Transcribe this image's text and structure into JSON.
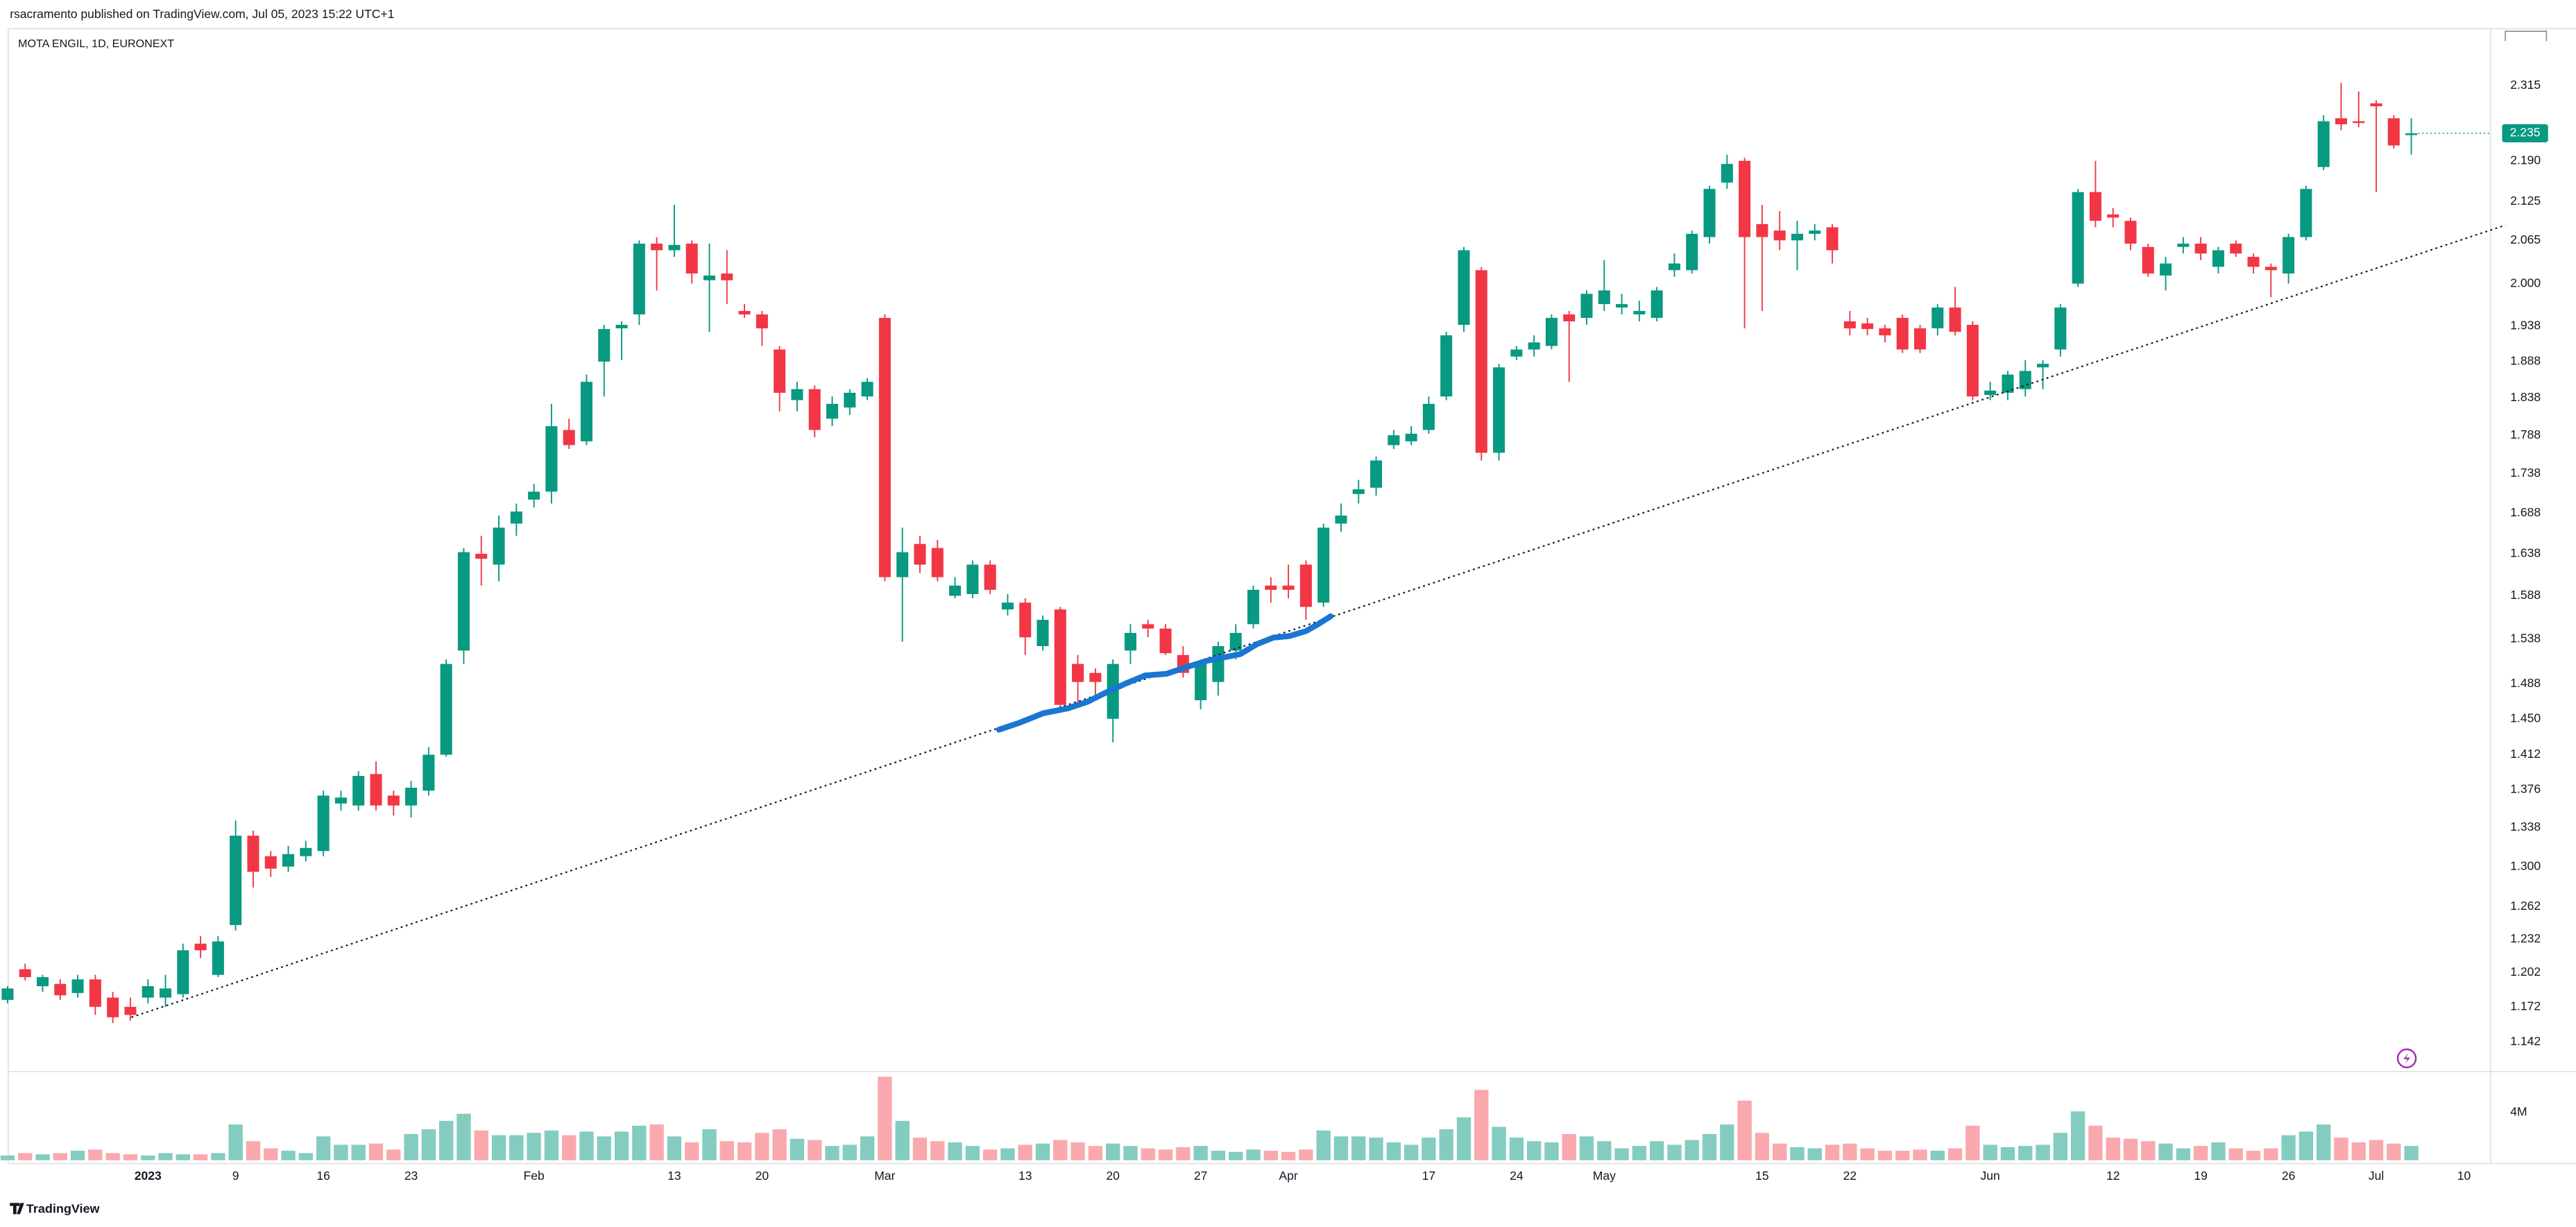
{
  "header": "rsacramento published on TradingView.com, Jul 05, 2023 15:22 UTC+1",
  "footer": "TradingView",
  "chart_data": {
    "type": "candlestick",
    "title": "MOTA ENGIL, 1D, EURONEXT",
    "log_scale": true,
    "grid": false,
    "up_color": "#089981",
    "down_color": "#f23645",
    "volume_up_color": "#84ccc0",
    "volume_down_color": "#f9a9ae",
    "categories": [
      null,
      null,
      null,
      null,
      null,
      null,
      null,
      null,
      "2023",
      null,
      null,
      null,
      null,
      "9",
      null,
      null,
      null,
      null,
      "16",
      null,
      null,
      null,
      null,
      "23",
      null,
      null,
      null,
      null,
      null,
      null,
      "Feb",
      null,
      null,
      null,
      null,
      null,
      null,
      null,
      "13",
      null,
      null,
      null,
      null,
      "20",
      null,
      null,
      null,
      null,
      null,
      null,
      "Mar",
      null,
      null,
      null,
      null,
      null,
      null,
      null,
      "13",
      null,
      null,
      null,
      null,
      "20",
      null,
      null,
      null,
      null,
      "27",
      null,
      null,
      null,
      null,
      "Apr",
      null,
      null,
      null,
      null,
      null,
      null,
      null,
      "17",
      null,
      null,
      null,
      null,
      "24",
      null,
      null,
      null,
      null,
      "May",
      null,
      null,
      null,
      null,
      null,
      null,
      null,
      null,
      "15",
      null,
      null,
      null,
      null,
      "22",
      null,
      null,
      null,
      null,
      null,
      null,
      null,
      "Jun",
      null,
      null,
      null,
      null,
      null,
      null,
      "12",
      null,
      null,
      null,
      null,
      "19",
      null,
      null,
      null,
      null,
      "26",
      null,
      null,
      null,
      null,
      "Jul",
      null,
      null,
      null,
      null,
      "10"
    ],
    "open": [
      1.178,
      1.205,
      1.19,
      1.192,
      1.184,
      1.196,
      1.18,
      1.172,
      1.18,
      1.18,
      1.183,
      1.228,
      1.2,
      1.245,
      1.33,
      1.31,
      1.3,
      1.31,
      1.315,
      1.362,
      1.36,
      1.392,
      1.37,
      1.36,
      1.375,
      1.412,
      1.525,
      1.638,
      1.625,
      1.675,
      1.705,
      1.715,
      1.795,
      1.78,
      1.888,
      1.935,
      1.955,
      2.06,
      2.05,
      2.06,
      2.005,
      2.015,
      1.96,
      1.955,
      1.905,
      1.835,
      1.85,
      1.81,
      1.825,
      1.84,
      1.95,
      1.61,
      1.65,
      1.645,
      1.588,
      1.59,
      1.625,
      1.572,
      1.58,
      1.53,
      1.572,
      1.51,
      1.5,
      1.45,
      1.525,
      1.555,
      1.55,
      1.52,
      1.47,
      1.49,
      1.525,
      1.555,
      1.6,
      1.6,
      1.625,
      1.58,
      1.675,
      1.712,
      1.72,
      1.775,
      1.78,
      1.795,
      1.84,
      1.94,
      2.02,
      1.765,
      1.895,
      1.905,
      1.91,
      1.955,
      1.95,
      1.97,
      1.965,
      1.955,
      1.95,
      2.02,
      2.02,
      2.07,
      2.155,
      2.19,
      2.09,
      2.08,
      2.065,
      2.075,
      2.085,
      1.945,
      1.942,
      1.935,
      1.95,
      1.935,
      1.935,
      1.965,
      1.94,
      1.842,
      1.845,
      1.85,
      1.88,
      1.905,
      2.0,
      2.14,
      2.105,
      2.095,
      2.055,
      2.012,
      2.055,
      2.06,
      2.025,
      2.06,
      2.04,
      2.025,
      2.015,
      2.07,
      2.18,
      2.26,
      2.255,
      2.285,
      2.26,
      2.232,
      null,
      null,
      null
    ],
    "high": [
      1.19,
      1.21,
      1.2,
      1.196,
      1.2,
      1.2,
      1.185,
      1.18,
      1.196,
      1.2,
      1.228,
      1.235,
      1.235,
      1.345,
      1.335,
      1.315,
      1.32,
      1.325,
      1.375,
      1.375,
      1.395,
      1.405,
      1.375,
      1.385,
      1.42,
      1.515,
      1.645,
      1.66,
      1.685,
      1.7,
      1.725,
      1.83,
      1.81,
      1.87,
      1.94,
      1.945,
      2.065,
      2.07,
      2.12,
      2.065,
      2.06,
      2.05,
      1.97,
      1.96,
      1.91,
      1.86,
      1.855,
      1.84,
      1.85,
      1.865,
      1.955,
      1.67,
      1.66,
      1.655,
      1.61,
      1.63,
      1.63,
      1.59,
      1.585,
      1.565,
      1.575,
      1.52,
      1.505,
      1.515,
      1.555,
      1.56,
      1.555,
      1.53,
      1.515,
      1.535,
      1.555,
      1.6,
      1.61,
      1.625,
      1.63,
      1.675,
      1.7,
      1.73,
      1.76,
      1.795,
      1.8,
      1.84,
      1.93,
      2.055,
      2.025,
      1.885,
      1.91,
      1.925,
      1.955,
      1.96,
      1.99,
      2.035,
      1.985,
      1.975,
      1.995,
      2.045,
      2.08,
      2.15,
      2.2,
      2.195,
      2.12,
      2.11,
      2.095,
      2.09,
      2.09,
      1.96,
      1.95,
      1.94,
      1.955,
      1.94,
      1.97,
      1.995,
      1.945,
      1.86,
      1.875,
      1.89,
      1.89,
      1.97,
      2.145,
      2.19,
      2.115,
      2.1,
      2.06,
      2.04,
      2.07,
      2.07,
      2.055,
      2.065,
      2.045,
      2.03,
      2.075,
      2.15,
      2.265,
      2.32,
      2.305,
      2.29,
      2.265,
      2.26,
      null,
      null,
      null
    ],
    "low": [
      1.175,
      1.195,
      1.185,
      1.178,
      1.18,
      1.165,
      1.158,
      1.16,
      1.175,
      1.172,
      1.18,
      1.215,
      1.198,
      1.24,
      1.28,
      1.29,
      1.295,
      1.305,
      1.31,
      1.355,
      1.355,
      1.355,
      1.35,
      1.348,
      1.37,
      1.41,
      1.51,
      1.6,
      1.605,
      1.66,
      1.695,
      1.7,
      1.77,
      1.775,
      1.84,
      1.89,
      1.94,
      1.99,
      2.04,
      2.0,
      1.93,
      1.97,
      1.95,
      1.91,
      1.82,
      1.82,
      1.785,
      1.8,
      1.815,
      1.835,
      1.605,
      1.535,
      1.615,
      1.605,
      1.585,
      1.585,
      1.59,
      1.565,
      1.52,
      1.525,
      1.46,
      1.465,
      1.47,
      1.425,
      1.51,
      1.54,
      1.52,
      1.495,
      1.46,
      1.475,
      1.515,
      1.55,
      1.58,
      1.585,
      1.56,
      1.575,
      1.665,
      1.7,
      1.71,
      1.77,
      1.775,
      1.79,
      1.835,
      1.93,
      1.755,
      1.755,
      1.89,
      1.895,
      1.905,
      1.86,
      1.94,
      1.96,
      1.955,
      1.945,
      1.945,
      2.01,
      2.015,
      2.06,
      2.145,
      1.935,
      1.96,
      2.05,
      2.02,
      2.065,
      2.03,
      1.925,
      1.925,
      1.915,
      1.9,
      1.9,
      1.925,
      1.925,
      1.835,
      1.835,
      1.835,
      1.84,
      1.85,
      1.895,
      1.995,
      2.085,
      2.085,
      2.05,
      2.01,
      1.99,
      2.045,
      2.035,
      2.015,
      2.04,
      2.015,
      1.98,
      2.0,
      2.065,
      2.175,
      2.24,
      2.245,
      2.14,
      2.21,
      2.2,
      null,
      null,
      null
    ],
    "close": [
      1.188,
      1.198,
      1.198,
      1.182,
      1.196,
      1.172,
      1.163,
      1.165,
      1.19,
      1.188,
      1.222,
      1.222,
      1.23,
      1.33,
      1.295,
      1.298,
      1.312,
      1.318,
      1.37,
      1.368,
      1.39,
      1.36,
      1.36,
      1.378,
      1.412,
      1.51,
      1.64,
      1.632,
      1.67,
      1.69,
      1.715,
      1.8,
      1.775,
      1.86,
      1.934,
      1.94,
      2.06,
      2.05,
      2.058,
      2.015,
      2.012,
      2.005,
      1.955,
      1.935,
      1.845,
      1.85,
      1.795,
      1.83,
      1.845,
      1.86,
      1.61,
      1.64,
      1.625,
      1.61,
      1.6,
      1.625,
      1.595,
      1.58,
      1.54,
      1.56,
      1.465,
      1.49,
      1.49,
      1.51,
      1.545,
      1.55,
      1.522,
      1.5,
      1.51,
      1.53,
      1.545,
      1.595,
      1.595,
      1.595,
      1.575,
      1.67,
      1.685,
      1.718,
      1.755,
      1.788,
      1.79,
      1.83,
      1.925,
      2.05,
      1.765,
      1.88,
      1.905,
      1.915,
      1.95,
      1.945,
      1.985,
      1.99,
      1.97,
      1.96,
      1.99,
      2.03,
      2.075,
      2.145,
      2.185,
      2.07,
      2.07,
      2.065,
      2.075,
      2.08,
      2.05,
      1.935,
      1.934,
      1.925,
      1.905,
      1.905,
      1.965,
      1.93,
      1.84,
      1.848,
      1.87,
      1.875,
      1.885,
      1.965,
      2.14,
      2.095,
      2.1,
      2.06,
      2.015,
      2.03,
      2.06,
      2.045,
      2.05,
      2.045,
      2.025,
      2.02,
      2.07,
      2.145,
      2.255,
      2.25,
      2.252,
      2.28,
      2.215,
      2.235,
      null,
      null,
      null
    ],
    "volume": [
      400000,
      600000,
      500000,
      600000,
      800000,
      900000,
      600000,
      500000,
      400000,
      600000,
      500000,
      500000,
      600000,
      3000000,
      1600000,
      1000000,
      800000,
      600000,
      2000000,
      1300000,
      1300000,
      1400000,
      900000,
      2200000,
      2600000,
      3300000,
      3900000,
      2500000,
      2100000,
      2100000,
      2300000,
      2500000,
      2100000,
      2400000,
      2000000,
      2400000,
      2900000,
      3000000,
      2000000,
      1500000,
      2600000,
      1600000,
      1500000,
      2300000,
      2600000,
      1800000,
      1700000,
      1200000,
      1300000,
      2000000,
      7000000,
      3300000,
      1900000,
      1600000,
      1500000,
      1200000,
      900000,
      1000000,
      1300000,
      1400000,
      1700000,
      1500000,
      1200000,
      1400000,
      1200000,
      1000000,
      900000,
      1100000,
      1200000,
      800000,
      700000,
      900000,
      800000,
      700000,
      900000,
      2500000,
      2000000,
      2000000,
      1900000,
      1500000,
      1300000,
      1900000,
      2600000,
      3600000,
      5900000,
      2800000,
      1900000,
      1600000,
      1500000,
      2200000,
      2000000,
      1600000,
      1000000,
      1200000,
      1600000,
      1300000,
      1700000,
      2200000,
      3000000,
      5000000,
      2300000,
      1400000,
      1100000,
      1000000,
      1300000,
      1400000,
      1000000,
      800000,
      800000,
      900000,
      800000,
      1000000,
      2900000,
      1300000,
      1100000,
      1200000,
      1300000,
      2300000,
      4100000,
      2900000,
      1900000,
      1800000,
      1600000,
      1400000,
      1000000,
      1200000,
      1500000,
      1000000,
      800000,
      1000000,
      2100000,
      2400000,
      3000000,
      1900000,
      1500000,
      1700000,
      1400000,
      1200000,
      null,
      null,
      null
    ],
    "ylim": [
      1.12,
      2.413
    ],
    "yticks": [
      2.315,
      {
        "value": 2.19,
        "label": "2.190"
      },
      2.125,
      2.065,
      {
        "value": 2,
        "label": "2.000"
      },
      1.938,
      1.888,
      1.838,
      1.788,
      1.738,
      1.688,
      1.638,
      1.588,
      1.538,
      1.488,
      {
        "value": 1.45,
        "label": "1.450"
      },
      1.412,
      1.376,
      1.338,
      {
        "value": 1.3,
        "label": "1.300"
      },
      1.262,
      1.232,
      1.202,
      1.172,
      1.142
    ],
    "volume_ylim": [
      0,
      7300000
    ],
    "volume_yticks": [
      {
        "value": 4000000,
        "label": "4M"
      }
    ]
  }
}
